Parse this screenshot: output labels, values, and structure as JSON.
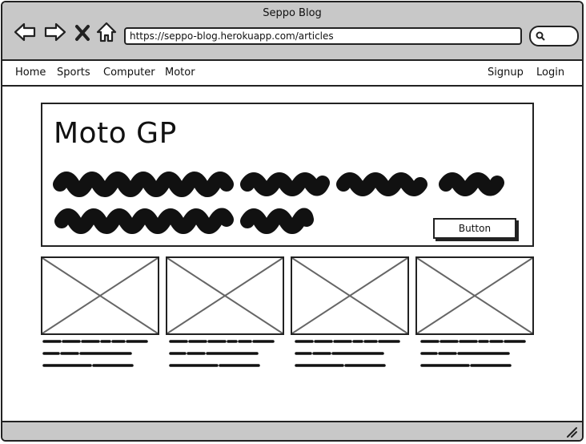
{
  "window": {
    "title": "Seppo Blog"
  },
  "browser": {
    "url": "https://seppo-blog.herokuapp.com/articles",
    "back_icon": "arrow-left",
    "forward_icon": "arrow-right",
    "close_icon": "x",
    "home_icon": "house",
    "search_icon": "magnifier"
  },
  "nav": {
    "left_items": [
      "Home",
      "Sports",
      "Computer",
      "Motor"
    ],
    "right_items": [
      "Signup",
      "Login"
    ]
  },
  "hero": {
    "title": "Moto GP",
    "button_label": "Button"
  },
  "cards": [
    {
      "image": "placeholder"
    },
    {
      "image": "placeholder"
    },
    {
      "image": "placeholder"
    },
    {
      "image": "placeholder"
    }
  ],
  "colors": {
    "chrome": "#c8c8c8",
    "ink": "#222222",
    "placeholder_cross": "#666666"
  }
}
